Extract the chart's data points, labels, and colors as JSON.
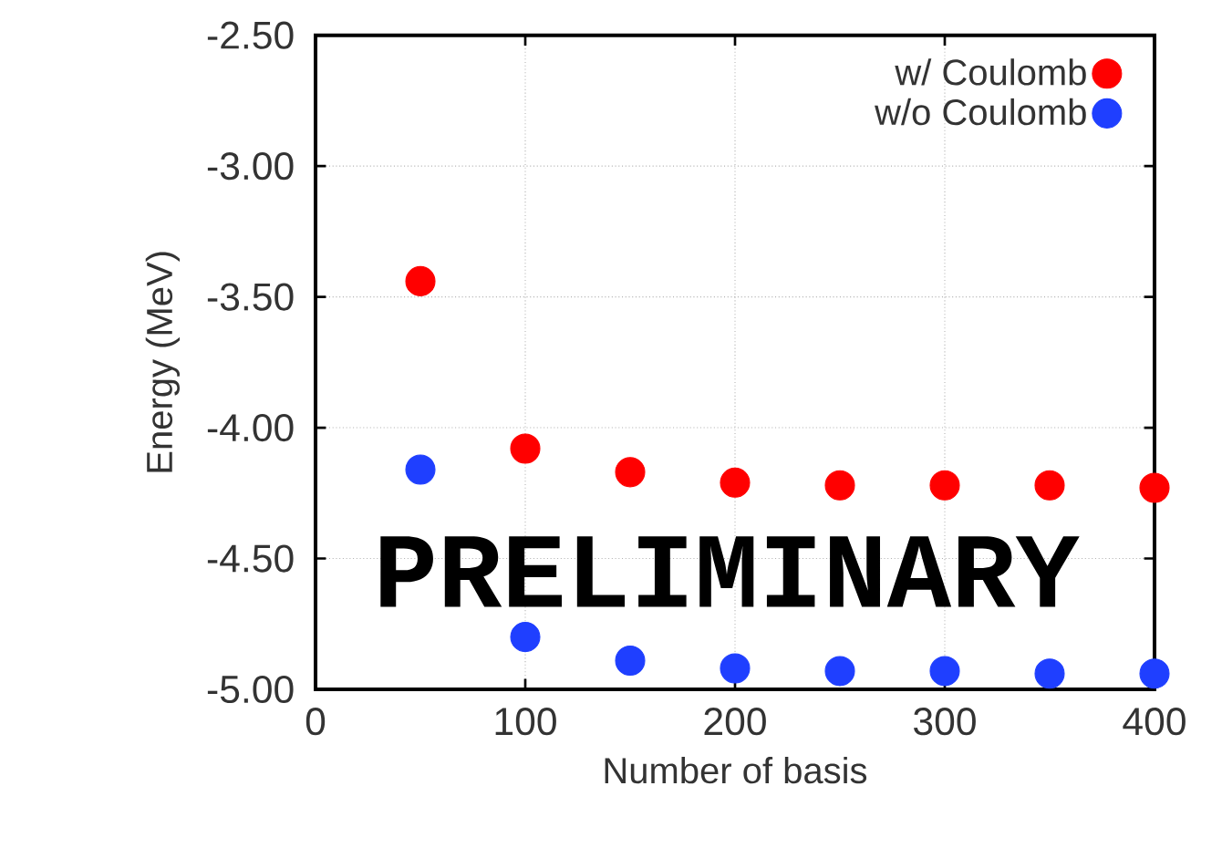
{
  "chart_data": {
    "type": "scatter",
    "xlabel": "Number of basis",
    "ylabel": "Energy (MeV)",
    "x": [
      50,
      100,
      150,
      200,
      250,
      300,
      350,
      400
    ],
    "series": [
      {
        "name": "w/  Coulomb",
        "color": "#ff0000",
        "values": [
          -3.44,
          -4.08,
          -4.17,
          -4.21,
          -4.22,
          -4.22,
          -4.22,
          -4.23
        ]
      },
      {
        "name": "w/o Coulomb",
        "color": "#1f3fff",
        "values": [
          -4.16,
          -4.8,
          -4.89,
          -4.92,
          -4.93,
          -4.93,
          -4.94,
          -4.94
        ]
      }
    ],
    "xlim": [
      0,
      400
    ],
    "ylim": [
      -5.0,
      -2.5
    ],
    "xticks": [
      0,
      100,
      200,
      300,
      400
    ],
    "yticks": [
      {
        "value": -5.0,
        "label": "-5.00"
      },
      {
        "value": -4.5,
        "label": "-4.50"
      },
      {
        "value": -4.0,
        "label": "-4.00"
      },
      {
        "value": -3.5,
        "label": "-3.50"
      },
      {
        "value": -3.0,
        "label": "-3.00"
      },
      {
        "value": -2.5,
        "label": "-2.50"
      }
    ],
    "grid": true,
    "legend": "top right",
    "marker": "circle",
    "annotations": [
      "PRELIMINARY"
    ]
  }
}
